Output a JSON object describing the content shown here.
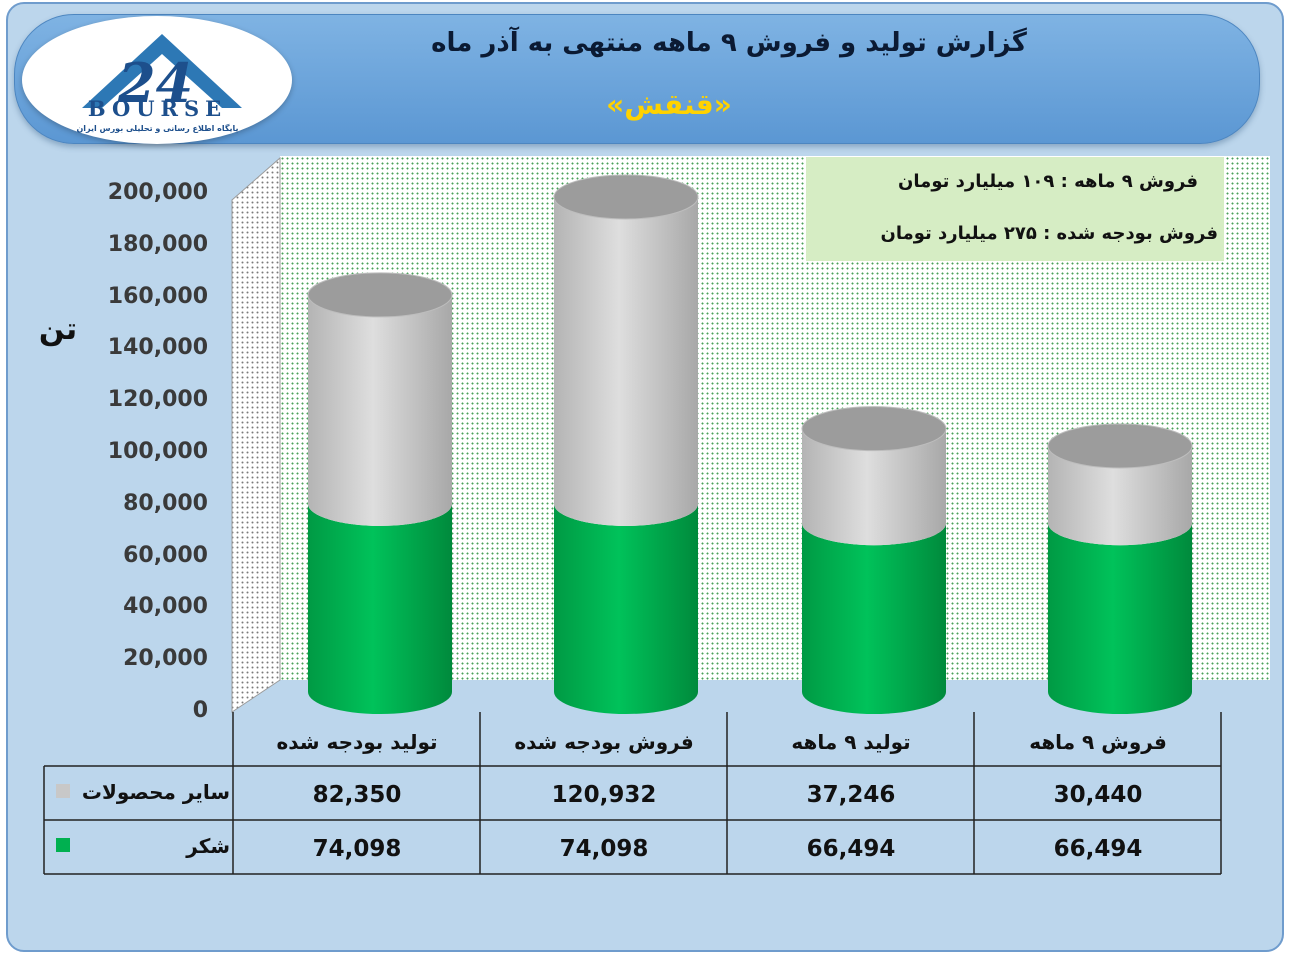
{
  "header": {
    "title": "گزارش تولید و فروش ۹ ماهه منتهی به آذر ماه",
    "subtitle": "«قنقش»"
  },
  "logo": {
    "name": "BOURSE",
    "tagline": "پایگاه اطلاع رسانی و تحلیلی بورس ایران"
  },
  "info": {
    "line1": "فروش ۹ ماهه : ۱۰۹ میلیارد تومان",
    "line2": "فروش بودجه شده : ۲۷۵ میلیارد تومان"
  },
  "colors": {
    "green": "#00b050",
    "grey": "#c8c8c8",
    "accent_title": "#ffd200"
  },
  "chart_data": {
    "type": "bar",
    "ylabel": "تن",
    "ylim": [
      0,
      200000
    ],
    "y_ticks": [
      "0",
      "20,000",
      "40,000",
      "60,000",
      "80,000",
      "100,000",
      "120,000",
      "140,000",
      "160,000",
      "180,000",
      "200,000"
    ],
    "categories": [
      "تولید بودجه شده",
      "فروش بودجه شده",
      "تولید ۹ ماهه",
      "فروش ۹ ماهه"
    ],
    "series": [
      {
        "name": "سایر محصولات",
        "values": [
          82350,
          120932,
          37246,
          30440
        ],
        "labels": [
          "82,350",
          "120,932",
          "37,246",
          "30,440"
        ],
        "color": "#c8c8c8"
      },
      {
        "name": "شکر",
        "values": [
          74098,
          74098,
          66494,
          66494
        ],
        "labels": [
          "74,098",
          "74,098",
          "66,494",
          "66,494"
        ],
        "color": "#00b050"
      }
    ],
    "stacked": true,
    "grid": false,
    "legend": "table-left"
  }
}
